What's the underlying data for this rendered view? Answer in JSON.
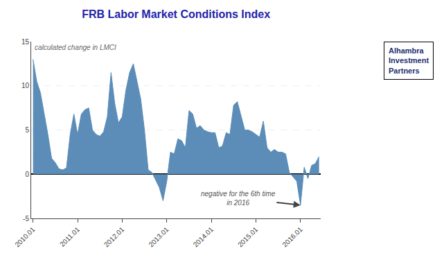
{
  "chart_data": {
    "type": "area",
    "title": "FRB Labor Market Conditions Index",
    "subtitle": "calculated change in LMCI",
    "color": "#5b8db8",
    "grid": true,
    "ylim": [
      -5,
      15
    ],
    "yticks": [
      -5,
      0,
      5,
      10,
      15
    ],
    "categories": [
      "2010.01",
      null,
      null,
      null,
      null,
      null,
      null,
      null,
      null,
      null,
      null,
      null,
      "2011.01",
      null,
      null,
      null,
      null,
      null,
      null,
      null,
      null,
      null,
      null,
      null,
      "2012.01",
      null,
      null,
      null,
      null,
      null,
      null,
      null,
      null,
      null,
      null,
      null,
      "2013.01",
      null,
      null,
      null,
      null,
      null,
      null,
      null,
      null,
      null,
      null,
      null,
      "2014.01",
      null,
      null,
      null,
      null,
      null,
      null,
      null,
      null,
      null,
      null,
      null,
      "2015.01",
      null,
      null,
      null,
      null,
      null,
      null,
      null,
      null,
      null,
      null,
      null,
      "2016.01",
      null,
      null,
      null,
      null,
      null
    ],
    "values": [
      13.0,
      10.5,
      9.2,
      7.0,
      4.5,
      1.8,
      1.3,
      0.6,
      0.5,
      0.7,
      4.5,
      6.8,
      4.5,
      6.8,
      7.3,
      7.5,
      5.0,
      4.5,
      4.3,
      4.8,
      6.5,
      11.5,
      8.0,
      5.8,
      6.5,
      9.5,
      11.5,
      12.5,
      10.5,
      8.5,
      5.0,
      0.5,
      0.2,
      -0.6,
      -1.5,
      -3.0,
      -0.8,
      2.5,
      2.3,
      4.0,
      3.8,
      3.0,
      7.2,
      6.8,
      5.2,
      5.5,
      5.0,
      4.8,
      4.7,
      4.7,
      3.0,
      3.2,
      4.7,
      4.5,
      7.8,
      8.2,
      6.5,
      5.0,
      5.0,
      4.8,
      4.5,
      4.2,
      6.0,
      3.0,
      2.5,
      2.8,
      2.5,
      2.5,
      2.3,
      0.2,
      -0.3,
      -0.8,
      -3.5,
      0.8,
      -0.5,
      1.0,
      1.2,
      2.0
    ],
    "annotations": [
      {
        "text": "negative for the 6th time\nin 2016",
        "x": "2016.01"
      },
      {
        "text": "Alhambra\nInvestment\nPartners"
      }
    ]
  }
}
